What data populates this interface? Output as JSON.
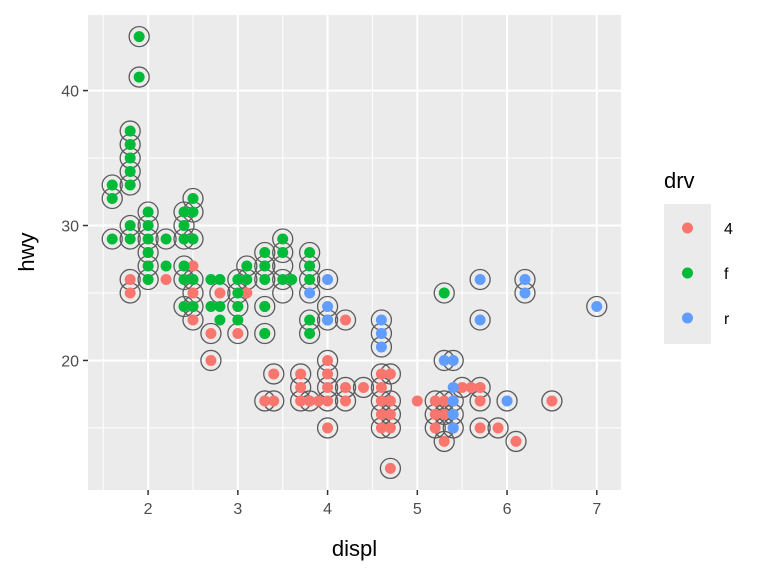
{
  "chart_data": {
    "type": "scatter",
    "title": "",
    "xlabel": "displ",
    "ylabel": "hwy",
    "xlim": [
      1.33,
      7.27
    ],
    "ylim": [
      10.4,
      45.6
    ],
    "x_ticks": [
      2,
      3,
      4,
      5,
      6,
      7
    ],
    "y_ticks": [
      20,
      30,
      40
    ],
    "grid": true,
    "legend": {
      "title": "drv",
      "position": "right"
    },
    "colors": {
      "4": "#F8766D",
      "f": "#00BA38",
      "r": "#619CFF",
      "ring": "#5a5a5a",
      "panel": "#EBEBEB"
    },
    "series": [
      {
        "name": "4",
        "points": [
          [
            1.8,
            26
          ],
          [
            1.8,
            25
          ],
          [
            2.0,
            28
          ],
          [
            2.0,
            27
          ],
          [
            2.2,
            26
          ],
          [
            2.5,
            27
          ],
          [
            2.5,
            26
          ],
          [
            2.5,
            25
          ],
          [
            2.5,
            24
          ],
          [
            2.5,
            23
          ],
          [
            2.7,
            22
          ],
          [
            2.7,
            20
          ],
          [
            2.8,
            25
          ],
          [
            3.0,
            24
          ],
          [
            3.0,
            22
          ],
          [
            3.1,
            25
          ],
          [
            3.3,
            24
          ],
          [
            3.3,
            22
          ],
          [
            3.3,
            17
          ],
          [
            3.4,
            19
          ],
          [
            3.4,
            17
          ],
          [
            3.7,
            19
          ],
          [
            3.7,
            18
          ],
          [
            3.7,
            17
          ],
          [
            3.8,
            17
          ],
          [
            3.9,
            17
          ],
          [
            4.0,
            20
          ],
          [
            4.0,
            19
          ],
          [
            4.0,
            18
          ],
          [
            4.0,
            17
          ],
          [
            4.0,
            15
          ],
          [
            4.2,
            23
          ],
          [
            4.2,
            18
          ],
          [
            4.2,
            17
          ],
          [
            4.4,
            18
          ],
          [
            4.6,
            19
          ],
          [
            4.6,
            18
          ],
          [
            4.6,
            17
          ],
          [
            4.6,
            16
          ],
          [
            4.6,
            15
          ],
          [
            4.7,
            19
          ],
          [
            4.7,
            17
          ],
          [
            4.7,
            16
          ],
          [
            4.7,
            15
          ],
          [
            4.7,
            12
          ],
          [
            5.0,
            17
          ],
          [
            5.2,
            17
          ],
          [
            5.2,
            16
          ],
          [
            5.2,
            15
          ],
          [
            5.3,
            17
          ],
          [
            5.3,
            16
          ],
          [
            5.3,
            14
          ],
          [
            5.4,
            17
          ],
          [
            5.4,
            15
          ],
          [
            5.5,
            18
          ],
          [
            5.6,
            18
          ],
          [
            5.7,
            18
          ],
          [
            5.7,
            17
          ],
          [
            5.7,
            15
          ],
          [
            5.9,
            15
          ],
          [
            6.1,
            14
          ],
          [
            6.5,
            17
          ]
        ]
      },
      {
        "name": "f",
        "points": [
          [
            1.6,
            33
          ],
          [
            1.6,
            32
          ],
          [
            1.6,
            29
          ],
          [
            1.8,
            37
          ],
          [
            1.8,
            36
          ],
          [
            1.8,
            35
          ],
          [
            1.8,
            34
          ],
          [
            1.8,
            33
          ],
          [
            1.8,
            30
          ],
          [
            1.8,
            29
          ],
          [
            1.9,
            44
          ],
          [
            1.9,
            41
          ],
          [
            2.0,
            31
          ],
          [
            2.0,
            30
          ],
          [
            2.0,
            29
          ],
          [
            2.0,
            28
          ],
          [
            2.0,
            27
          ],
          [
            2.0,
            26
          ],
          [
            2.2,
            29
          ],
          [
            2.2,
            27
          ],
          [
            2.4,
            31
          ],
          [
            2.4,
            30
          ],
          [
            2.4,
            29
          ],
          [
            2.4,
            27
          ],
          [
            2.4,
            26
          ],
          [
            2.4,
            24
          ],
          [
            2.5,
            32
          ],
          [
            2.5,
            31
          ],
          [
            2.5,
            29
          ],
          [
            2.5,
            26
          ],
          [
            2.5,
            24
          ],
          [
            2.7,
            26
          ],
          [
            2.7,
            24
          ],
          [
            2.8,
            26
          ],
          [
            2.8,
            24
          ],
          [
            2.8,
            23
          ],
          [
            3.0,
            26
          ],
          [
            3.0,
            25
          ],
          [
            3.0,
            24
          ],
          [
            3.0,
            23
          ],
          [
            3.1,
            27
          ],
          [
            3.1,
            26
          ],
          [
            3.3,
            28
          ],
          [
            3.3,
            27
          ],
          [
            3.3,
            26
          ],
          [
            3.3,
            24
          ],
          [
            3.3,
            22
          ],
          [
            3.5,
            29
          ],
          [
            3.5,
            28
          ],
          [
            3.5,
            26
          ],
          [
            3.6,
            26
          ],
          [
            3.8,
            28
          ],
          [
            3.8,
            27
          ],
          [
            3.8,
            26
          ],
          [
            3.8,
            23
          ],
          [
            3.8,
            22
          ],
          [
            4.0,
            23
          ],
          [
            5.3,
            25
          ]
        ]
      },
      {
        "name": "r",
        "points": [
          [
            3.8,
            25
          ],
          [
            4.0,
            26
          ],
          [
            4.0,
            24
          ],
          [
            4.0,
            23
          ],
          [
            4.6,
            23
          ],
          [
            4.6,
            22
          ],
          [
            4.6,
            21
          ],
          [
            5.3,
            20
          ],
          [
            5.4,
            20
          ],
          [
            5.4,
            18
          ],
          [
            5.4,
            17
          ],
          [
            5.4,
            16
          ],
          [
            5.4,
            15
          ],
          [
            5.7,
            26
          ],
          [
            5.7,
            23
          ],
          [
            6.0,
            17
          ],
          [
            6.2,
            26
          ],
          [
            6.2,
            25
          ],
          [
            7.0,
            24
          ]
        ]
      }
    ],
    "circled": [
      [
        1.6,
        33
      ],
      [
        1.6,
        32
      ],
      [
        1.6,
        29
      ],
      [
        1.8,
        37
      ],
      [
        1.8,
        36
      ],
      [
        1.8,
        35
      ],
      [
        1.8,
        34
      ],
      [
        1.8,
        33
      ],
      [
        1.8,
        30
      ],
      [
        1.8,
        29
      ],
      [
        1.8,
        26
      ],
      [
        1.8,
        25
      ],
      [
        1.9,
        44
      ],
      [
        1.9,
        41
      ],
      [
        2.0,
        31
      ],
      [
        2.0,
        30
      ],
      [
        2.0,
        29
      ],
      [
        2.0,
        28
      ],
      [
        2.0,
        27
      ],
      [
        2.0,
        26
      ],
      [
        2.2,
        29
      ],
      [
        2.4,
        31
      ],
      [
        2.4,
        30
      ],
      [
        2.4,
        29
      ],
      [
        2.4,
        27
      ],
      [
        2.4,
        26
      ],
      [
        2.4,
        24
      ],
      [
        2.5,
        32
      ],
      [
        2.5,
        31
      ],
      [
        2.5,
        29
      ],
      [
        2.5,
        26
      ],
      [
        2.5,
        25
      ],
      [
        2.5,
        24
      ],
      [
        2.5,
        23
      ],
      [
        2.7,
        22
      ],
      [
        2.7,
        20
      ],
      [
        2.8,
        25
      ],
      [
        3.0,
        26
      ],
      [
        3.0,
        25
      ],
      [
        3.0,
        24
      ],
      [
        3.0,
        22
      ],
      [
        3.1,
        27
      ],
      [
        3.1,
        26
      ],
      [
        3.3,
        28
      ],
      [
        3.3,
        27
      ],
      [
        3.3,
        26
      ],
      [
        3.3,
        24
      ],
      [
        3.3,
        22
      ],
      [
        3.3,
        17
      ],
      [
        3.4,
        19
      ],
      [
        3.4,
        17
      ],
      [
        3.5,
        29
      ],
      [
        3.5,
        28
      ],
      [
        3.5,
        27
      ],
      [
        3.5,
        26
      ],
      [
        3.5,
        25
      ],
      [
        3.7,
        19
      ],
      [
        3.7,
        18
      ],
      [
        3.7,
        17
      ],
      [
        3.8,
        28
      ],
      [
        3.8,
        27
      ],
      [
        3.8,
        26
      ],
      [
        3.8,
        25
      ],
      [
        3.8,
        23
      ],
      [
        3.8,
        22
      ],
      [
        3.8,
        17
      ],
      [
        4.0,
        26
      ],
      [
        4.0,
        24
      ],
      [
        4.0,
        23
      ],
      [
        4.0,
        20
      ],
      [
        4.0,
        19
      ],
      [
        4.0,
        18
      ],
      [
        4.0,
        17
      ],
      [
        4.0,
        15
      ],
      [
        4.2,
        23
      ],
      [
        4.2,
        18
      ],
      [
        4.2,
        17
      ],
      [
        4.4,
        18
      ],
      [
        4.6,
        23
      ],
      [
        4.6,
        22
      ],
      [
        4.6,
        21
      ],
      [
        4.6,
        19
      ],
      [
        4.6,
        18
      ],
      [
        4.6,
        17
      ],
      [
        4.6,
        16
      ],
      [
        4.6,
        15
      ],
      [
        4.7,
        19
      ],
      [
        4.7,
        17
      ],
      [
        4.7,
        16
      ],
      [
        4.7,
        15
      ],
      [
        4.7,
        12
      ],
      [
        5.2,
        17
      ],
      [
        5.2,
        16
      ],
      [
        5.2,
        15
      ],
      [
        5.3,
        25
      ],
      [
        5.3,
        20
      ],
      [
        5.3,
        17
      ],
      [
        5.3,
        16
      ],
      [
        5.3,
        15
      ],
      [
        5.3,
        14
      ],
      [
        5.4,
        20
      ],
      [
        5.4,
        17
      ],
      [
        5.4,
        16
      ],
      [
        5.4,
        15
      ],
      [
        5.5,
        18
      ],
      [
        5.7,
        26
      ],
      [
        5.7,
        23
      ],
      [
        5.7,
        18
      ],
      [
        5.7,
        17
      ],
      [
        5.7,
        15
      ],
      [
        5.9,
        15
      ],
      [
        6.0,
        17
      ],
      [
        6.1,
        14
      ],
      [
        6.2,
        26
      ],
      [
        6.2,
        25
      ],
      [
        6.5,
        17
      ],
      [
        7.0,
        24
      ]
    ]
  }
}
